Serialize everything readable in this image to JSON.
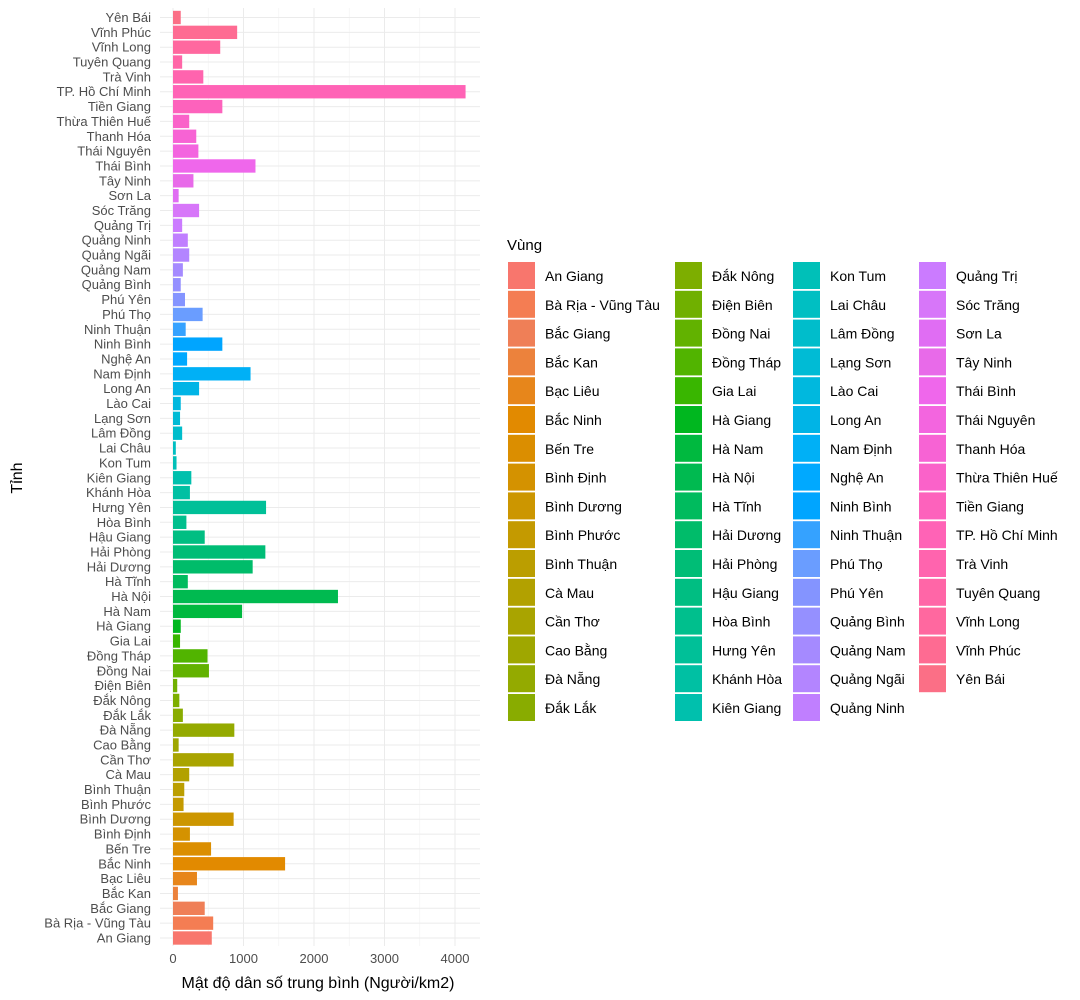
{
  "chart_data": {
    "type": "bar",
    "orientation": "horizontal",
    "title": "",
    "xlabel": "Mật độ dân số trung bình (Người/km2)",
    "ylabel": "Tỉnh",
    "legend_title": "Vùng",
    "legend_position": "right",
    "grid": true,
    "xlim": [
      0,
      4300
    ],
    "x_ticks": [
      0,
      1000,
      2000,
      3000,
      4000
    ],
    "categories": [
      "An Giang",
      "Bà Rịa - Vũng Tàu",
      "Bắc Giang",
      "Bắc Kan",
      "Bạc Liêu",
      "Bắc Ninh",
      "Bến Tre",
      "Bình Định",
      "Bình Dương",
      "Bình Phước",
      "Bình Thuận",
      "Cà Mau",
      "Cần Thơ",
      "Cao Bằng",
      "Đà Nẵng",
      "Đắk Lắk",
      "Đắk Nông",
      "Điện Biên",
      "Đồng Nai",
      "Đồng Tháp",
      "Gia Lai",
      "Hà Giang",
      "Hà Nam",
      "Hà Nội",
      "Hà Tĩnh",
      "Hải Dương",
      "Hải Phòng",
      "Hậu Giang",
      "Hòa Bình",
      "Hưng Yên",
      "Khánh Hòa",
      "Kiên Giang",
      "Kon Tum",
      "Lai Châu",
      "Lâm Đồng",
      "Lạng Sơn",
      "Lào Cai",
      "Long An",
      "Nam Định",
      "Nghệ An",
      "Ninh Bình",
      "Ninh Thuận",
      "Phú Thọ",
      "Phú Yên",
      "Quảng Bình",
      "Quảng Nam",
      "Quảng Ngãi",
      "Quảng Ninh",
      "Quảng Trị",
      "Sóc Trăng",
      "Sơn La",
      "Tây Ninh",
      "Thái Bình",
      "Thái Nguyên",
      "Thanh Hóa",
      "Thừa Thiên Huế",
      "Tiền Giang",
      "TP. Hồ Chí Minh",
      "Trà Vinh",
      "Tuyên Quang",
      "Vĩnh Long",
      "Vĩnh Phúc",
      "Yên Bái"
    ],
    "values": [
      550,
      570,
      450,
      70,
      340,
      1590,
      540,
      240,
      860,
      150,
      160,
      230,
      860,
      80,
      870,
      140,
      90,
      60,
      510,
      490,
      100,
      110,
      980,
      2340,
      210,
      1130,
      1310,
      450,
      190,
      1320,
      240,
      260,
      50,
      40,
      130,
      100,
      110,
      370,
      1100,
      200,
      700,
      180,
      420,
      170,
      110,
      140,
      230,
      210,
      130,
      370,
      80,
      290,
      1170,
      360,
      330,
      230,
      700,
      4150,
      430,
      130,
      670,
      910,
      110
    ],
    "colors": [
      "#F8766D",
      "#F47D53",
      "#EF7F57",
      "#EC823C",
      "#E7861B",
      "#E28A00",
      "#DB8E00",
      "#D49200",
      "#CC9600",
      "#C49A00",
      "#BB9E00",
      "#B2A100",
      "#A9A400",
      "#9FA700",
      "#94AA00",
      "#89AC00",
      "#7DAE00",
      "#70B000",
      "#62B200",
      "#51B400",
      "#39B600",
      "#00B71F",
      "#00B93F",
      "#00BA50",
      "#00BB5E",
      "#00BC6A",
      "#00BD76",
      "#00BE82",
      "#00BF8D",
      "#00C098",
      "#00C0A3",
      "#00C0AD",
      "#00C0B8",
      "#00BFC2",
      "#00BDCB",
      "#00BBD5",
      "#00B8DE",
      "#00B4E6",
      "#00B0F6",
      "#00A9FF",
      "#00A5FF",
      "#35A2FF",
      "#6A9DFF",
      "#8494FF",
      "#9590FF",
      "#A58AFF",
      "#B385FF",
      "#C07FFF",
      "#CB7BFF",
      "#D776F9",
      "#E06DF3",
      "#E86AE9",
      "#EF67EB",
      "#F365DF",
      "#F763D4",
      "#FA62C9",
      "#FD62BC",
      "#FF63B6",
      "#FF64AE",
      "#FF66A7",
      "#FF689F",
      "#FE6B92",
      "#FB6F86"
    ]
  }
}
